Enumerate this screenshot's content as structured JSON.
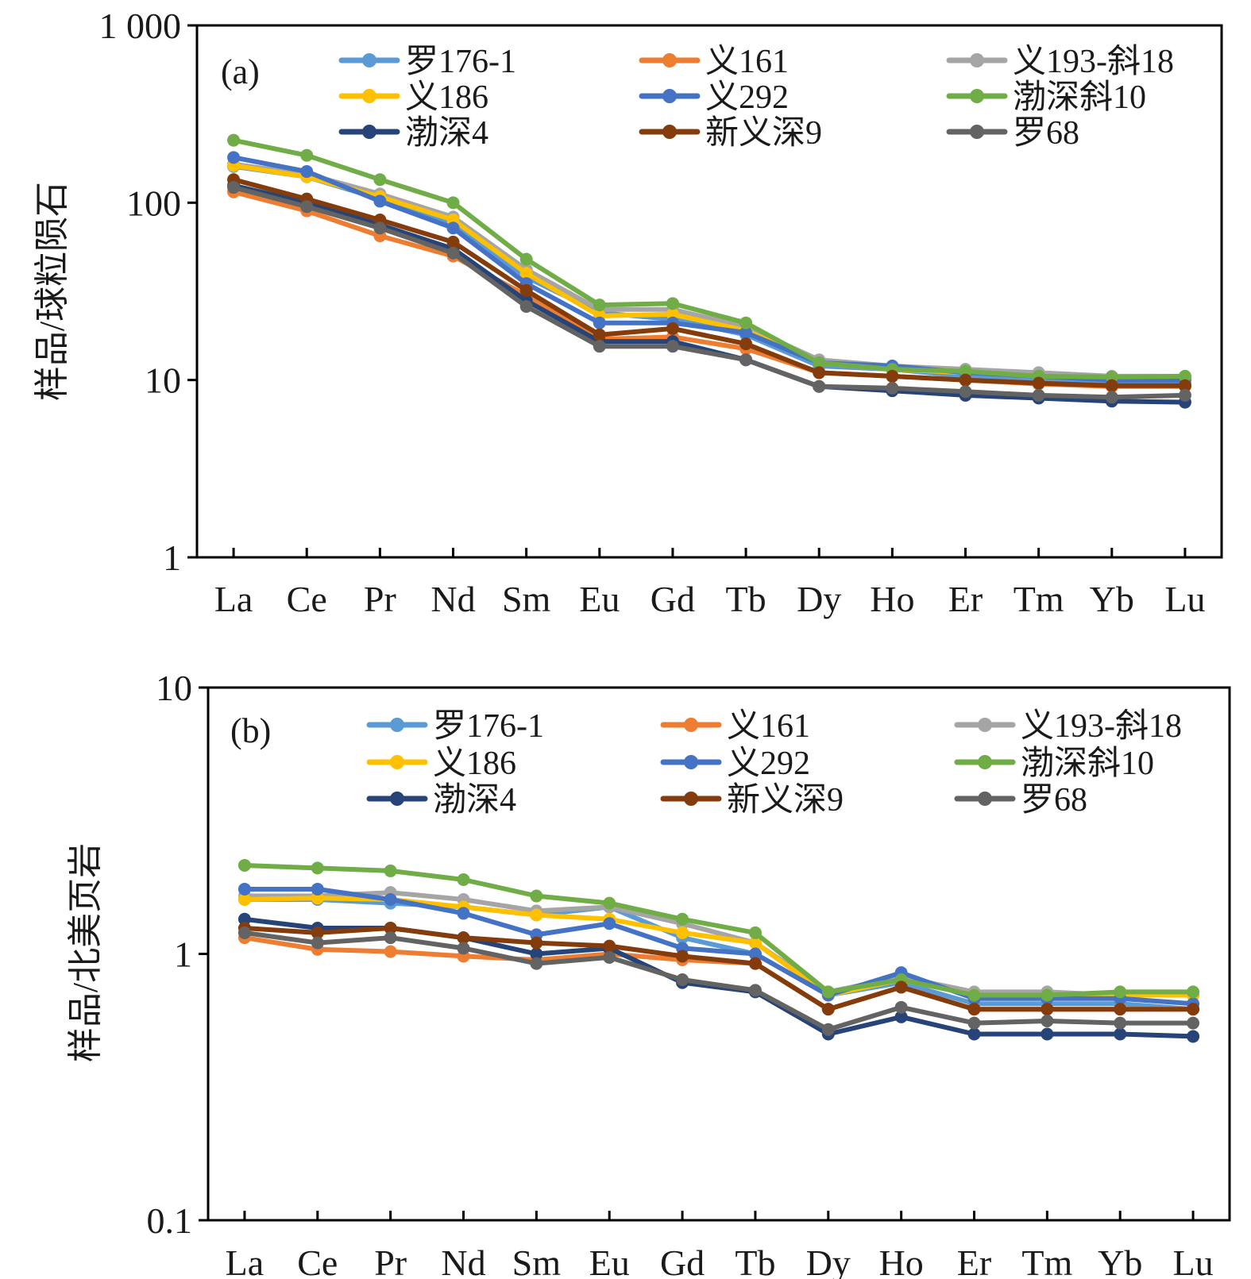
{
  "chart_data": [
    {
      "type": "line",
      "panel_label": "(a)",
      "title": "",
      "xlabel": "",
      "ylabel": "样品/球粒陨石",
      "yscale": "log",
      "ylim": [
        1,
        1000
      ],
      "yticks": [
        1,
        10,
        100,
        1000
      ],
      "ytick_labels": [
        "1",
        "10",
        "100",
        "1 000"
      ],
      "grid": false,
      "legend": "top, 3 columns",
      "categories": [
        "La",
        "Ce",
        "Pr",
        "Nd",
        "Sm",
        "Eu",
        "Gd",
        "Tb",
        "Dy",
        "Ho",
        "Er",
        "Tm",
        "Yb",
        "Lu"
      ],
      "series": [
        {
          "name": "罗176-1",
          "color": "#5b9bd5",
          "values": [
            160,
            140,
            105,
            75,
            38,
            24,
            22,
            18,
            12,
            11.5,
            10.5,
            10,
            9.5,
            9.5
          ]
        },
        {
          "name": "义161",
          "color": "#ed7d31",
          "values": [
            115,
            90,
            65,
            50,
            30,
            17,
            17.5,
            15,
            11,
            10.5,
            10,
            9.5,
            9.2,
            9.2
          ]
        },
        {
          "name": "义193-斜18",
          "color": "#a5a5a5",
          "values": [
            165,
            145,
            112,
            83,
            42,
            25,
            25,
            20,
            13,
            12,
            11.5,
            11,
            10.5,
            10.5
          ]
        },
        {
          "name": "义186",
          "color": "#ffc000",
          "values": [
            162,
            140,
            108,
            80,
            40,
            23,
            23.5,
            19,
            12.5,
            11.5,
            11,
            10.5,
            10.2,
            10.2
          ]
        },
        {
          "name": "义292",
          "color": "#4472c4",
          "values": [
            180,
            150,
            102,
            72,
            35,
            21,
            21,
            18.5,
            12.5,
            12,
            11,
            10.5,
            10,
            10
          ]
        },
        {
          "name": "渤深斜10",
          "color": "#70ad47",
          "values": [
            225,
            185,
            135,
            100,
            48,
            26.5,
            27,
            21,
            12.5,
            11.5,
            11.2,
            10.5,
            10.4,
            10.5
          ]
        },
        {
          "name": "渤深4",
          "color": "#264478",
          "values": [
            125,
            100,
            75,
            55,
            28,
            16.5,
            16.5,
            13,
            9.2,
            8.7,
            8.2,
            7.9,
            7.6,
            7.5
          ]
        },
        {
          "name": "新义深9",
          "color": "#843c0c",
          "values": [
            135,
            105,
            80,
            60,
            32,
            18,
            19.5,
            16,
            11,
            10.5,
            10,
            9.6,
            9.3,
            9.3
          ]
        },
        {
          "name": "罗68",
          "color": "#636363",
          "values": [
            122,
            95,
            72,
            52,
            26,
            15.5,
            15.5,
            13,
            9.2,
            9,
            8.6,
            8.2,
            8,
            8.2
          ]
        }
      ]
    },
    {
      "type": "line",
      "panel_label": "(b)",
      "title": "",
      "xlabel": "",
      "ylabel": "样品/北美页岩",
      "yscale": "log",
      "ylim": [
        0.1,
        10
      ],
      "yticks": [
        0.1,
        1,
        10
      ],
      "ytick_labels": [
        "0.1",
        "1",
        "10"
      ],
      "grid": false,
      "legend": "top, 3 columns",
      "categories": [
        "La",
        "Ce",
        "Pr",
        "Nd",
        "Sm",
        "Eu",
        "Gd",
        "Tb",
        "Dy",
        "Ho",
        "Er",
        "Tm",
        "Yb",
        "Lu"
      ],
      "series": [
        {
          "name": "罗176-1",
          "color": "#5b9bd5",
          "values": [
            1.6,
            1.6,
            1.55,
            1.5,
            1.4,
            1.5,
            1.15,
            1.0,
            0.7,
            0.78,
            0.65,
            0.65,
            0.65,
            0.62
          ]
        },
        {
          "name": "义161",
          "color": "#ed7d31",
          "values": [
            1.15,
            1.04,
            1.02,
            0.98,
            0.95,
            1.0,
            0.95,
            0.92,
            0.62,
            0.75,
            0.62,
            0.62,
            0.62,
            0.62
          ]
        },
        {
          "name": "义193-斜18",
          "color": "#a5a5a5",
          "values": [
            1.65,
            1.65,
            1.7,
            1.6,
            1.45,
            1.5,
            1.3,
            1.1,
            0.72,
            0.82,
            0.72,
            0.72,
            0.7,
            0.7
          ]
        },
        {
          "name": "义186",
          "color": "#ffc000",
          "values": [
            1.6,
            1.62,
            1.6,
            1.5,
            1.4,
            1.35,
            1.2,
            1.1,
            0.7,
            0.8,
            0.7,
            0.7,
            0.7,
            0.7
          ]
        },
        {
          "name": "义292",
          "color": "#4472c4",
          "values": [
            1.75,
            1.75,
            1.6,
            1.42,
            1.18,
            1.3,
            1.05,
            1.0,
            0.7,
            0.85,
            0.68,
            0.68,
            0.68,
            0.65
          ]
        },
        {
          "name": "渤深斜10",
          "color": "#70ad47",
          "values": [
            2.15,
            2.1,
            2.05,
            1.9,
            1.65,
            1.55,
            1.35,
            1.2,
            0.72,
            0.8,
            0.7,
            0.7,
            0.72,
            0.72
          ]
        },
        {
          "name": "渤深4",
          "color": "#264478",
          "values": [
            1.35,
            1.25,
            1.25,
            1.15,
            1.0,
            1.05,
            0.78,
            0.72,
            0.5,
            0.58,
            0.5,
            0.5,
            0.5,
            0.49
          ]
        },
        {
          "name": "新义深9",
          "color": "#843c0c",
          "values": [
            1.25,
            1.2,
            1.25,
            1.15,
            1.1,
            1.07,
            0.98,
            0.92,
            0.62,
            0.75,
            0.62,
            0.62,
            0.62,
            0.62
          ]
        },
        {
          "name": "罗68",
          "color": "#636363",
          "values": [
            1.2,
            1.1,
            1.15,
            1.05,
            0.92,
            0.97,
            0.8,
            0.73,
            0.52,
            0.63,
            0.55,
            0.56,
            0.55,
            0.55
          ]
        }
      ]
    }
  ]
}
